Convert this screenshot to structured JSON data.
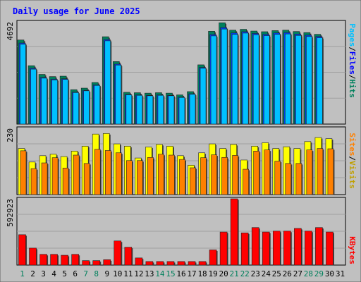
{
  "chart_data": [
    {
      "type": "bar",
      "title": "Daily usage for June 2025",
      "ytick_max": "4692",
      "ylabel_parts": [
        "Pages",
        "Files",
        "Hits"
      ],
      "ylim": [
        0,
        4692
      ],
      "categories": [
        "1",
        "2",
        "3",
        "4",
        "5",
        "6",
        "7",
        "8",
        "9",
        "10",
        "11",
        "12",
        "13",
        "14",
        "15",
        "16",
        "17",
        "18",
        "19",
        "20",
        "21",
        "22",
        "23",
        "24",
        "25",
        "26",
        "27",
        "28",
        "29",
        "30",
        "31"
      ],
      "series": [
        {
          "name": "Hits",
          "values": [
            3860,
            2680,
            2280,
            2180,
            2200,
            1580,
            1650,
            1910,
            4010,
            2870,
            1460,
            1440,
            1420,
            1440,
            1420,
            1340,
            1490,
            2720,
            4260,
            4650,
            4310,
            4350,
            4270,
            4240,
            4290,
            4310,
            4250,
            4200,
            4120,
            0,
            0
          ]
        },
        {
          "name": "Files",
          "values": [
            3720,
            2560,
            2140,
            2060,
            2080,
            1470,
            1550,
            1800,
            3880,
            2750,
            1360,
            1340,
            1320,
            1340,
            1320,
            1240,
            1390,
            2600,
            4110,
            4430,
            4180,
            4240,
            4160,
            4120,
            4180,
            4200,
            4130,
            4080,
            4020,
            0,
            0
          ]
        }
      ]
    },
    {
      "type": "bar",
      "ytick_max": "230",
      "ylabel_parts": [
        "Sites",
        "Visits"
      ],
      "ylim": [
        0,
        230
      ],
      "categories": [
        "1",
        "2",
        "3",
        "4",
        "5",
        "6",
        "7",
        "8",
        "9",
        "10",
        "11",
        "12",
        "13",
        "14",
        "15",
        "16",
        "17",
        "18",
        "19",
        "20",
        "21",
        "22",
        "23",
        "24",
        "25",
        "26",
        "27",
        "28",
        "29",
        "30",
        "31"
      ],
      "series": [
        {
          "name": "Visits",
          "values": [
            160,
            113,
            135,
            140,
            132,
            151,
            168,
            210,
            212,
            176,
            168,
            127,
            165,
            174,
            168,
            135,
            102,
            145,
            176,
            160,
            174,
            120,
            168,
            180,
            160,
            166,
            160,
            184,
            198,
            194,
            0
          ]
        },
        {
          "name": "Sites",
          "values": [
            152,
            90,
            110,
            128,
            92,
            137,
            108,
            157,
            153,
            145,
            118,
            118,
            129,
            140,
            137,
            122,
            93,
            128,
            138,
            129,
            136,
            88,
            151,
            155,
            116,
            108,
            108,
            155,
            160,
            159,
            0
          ]
        }
      ]
    },
    {
      "type": "bar",
      "ytick_max": "592923",
      "ylabel_parts": [
        "KBytes"
      ],
      "ylim": [
        0,
        592923
      ],
      "categories": [
        "1",
        "2",
        "3",
        "4",
        "5",
        "6",
        "7",
        "8",
        "9",
        "10",
        "11",
        "12",
        "13",
        "14",
        "15",
        "16",
        "17",
        "18",
        "19",
        "20",
        "21",
        "22",
        "23",
        "24",
        "25",
        "26",
        "27",
        "28",
        "29",
        "30",
        "31"
      ],
      "series": [
        {
          "name": "KBytes",
          "values": [
            272000,
            152000,
            96000,
            96000,
            88000,
            96000,
            40000,
            40000,
            48000,
            216000,
            160000,
            64000,
            32000,
            32000,
            32000,
            32000,
            32000,
            32000,
            136000,
            296000,
            592923,
            288000,
            336000,
            296000,
            304000,
            304000,
            328000,
            304000,
            336000,
            296000,
            0
          ]
        }
      ]
    }
  ],
  "weekend_days": [
    "1",
    "7",
    "8",
    "14",
    "15",
    "21",
    "22",
    "28",
    "29"
  ],
  "colors": {
    "background": "#c0c0c0",
    "plot_bg": "#c0c0c0",
    "grid": "#a0a0a0",
    "hits": "#00805c",
    "files": "#0000ff",
    "files_bar": "#0040ff",
    "pages": "#00c0ff",
    "visits": "#ffff00",
    "sites": "#ff8000",
    "kbytes": "#ff0000",
    "title": "#0000ff",
    "weekday_label": "#000000",
    "weekend_label": "#00805c"
  }
}
